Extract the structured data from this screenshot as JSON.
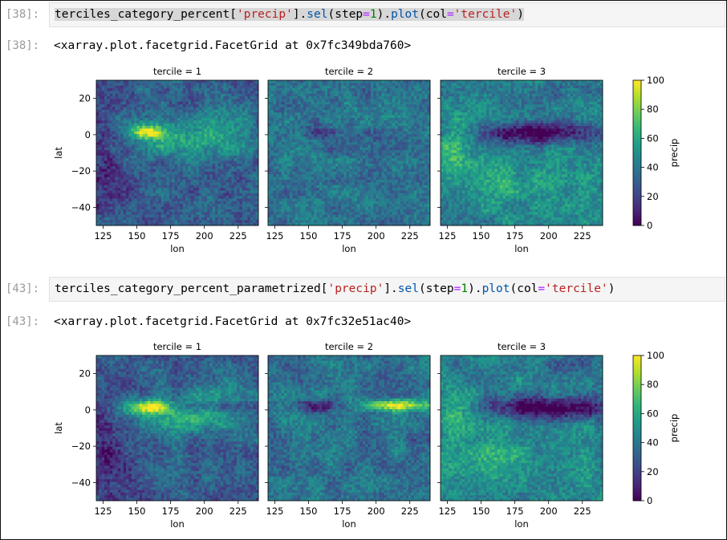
{
  "cells": [
    {
      "in_prompt": "[38]:",
      "code": {
        "name": "terciles_category_percent",
        "b1": "[",
        "key": "'precip'",
        "b2": "].",
        "sel": "sel",
        "p1": "(step",
        "eq1": "=",
        "num": "1",
        "p2": ").",
        "plot": "plot",
        "p3": "(col",
        "eq2": "=",
        "col": "'tercile'",
        "p4": ")"
      },
      "out_prompt": "[38]:",
      "output_text": "<xarray.plot.facetgrid.FacetGrid at 0x7fc349bda760>",
      "variant": 1
    },
    {
      "in_prompt": "[43]:",
      "code": {
        "name": "terciles_category_percent_parametrized",
        "b1": "[",
        "key": "'precip'",
        "b2": "].",
        "sel": "sel",
        "p1": "(step",
        "eq1": "=",
        "num": "1",
        "p2": ").",
        "plot": "plot",
        "p3": "(col",
        "eq2": "=",
        "col": "'tercile'",
        "p4": ")"
      },
      "out_prompt": "[43]:",
      "output_text": "<xarray.plot.facetgrid.FacetGrid at 0x7fc32e51ac40>",
      "variant": 2
    }
  ],
  "chart_data": [
    {
      "type": "heatmap",
      "facets": [
        "tercile = 1",
        "tercile = 2",
        "tercile = 3"
      ],
      "xlabel": "lon",
      "ylabel": "lat",
      "x_ticks": [
        "125",
        "150",
        "175",
        "200",
        "225"
      ],
      "y_ticks": [
        "20",
        "0",
        "−20",
        "−40"
      ],
      "xlim": [
        120,
        240
      ],
      "ylim": [
        -50,
        30
      ],
      "colorbar": {
        "label": "precip",
        "ticks": [
          "100",
          "80",
          "60",
          "40",
          "20",
          "0"
        ],
        "range": [
          0,
          100
        ],
        "colormap": "viridis"
      }
    },
    {
      "type": "heatmap",
      "facets": [
        "tercile = 1",
        "tercile = 2",
        "tercile = 3"
      ],
      "xlabel": "lon",
      "ylabel": "lat",
      "x_ticks": [
        "125",
        "150",
        "175",
        "200",
        "225"
      ],
      "y_ticks": [
        "20",
        "0",
        "−20",
        "−40"
      ],
      "xlim": [
        120,
        240
      ],
      "ylim": [
        -50,
        30
      ],
      "colorbar": {
        "label": "precip",
        "ticks": [
          "100",
          "80",
          "60",
          "40",
          "20",
          "0"
        ],
        "range": [
          0,
          100
        ],
        "colormap": "viridis"
      }
    }
  ]
}
